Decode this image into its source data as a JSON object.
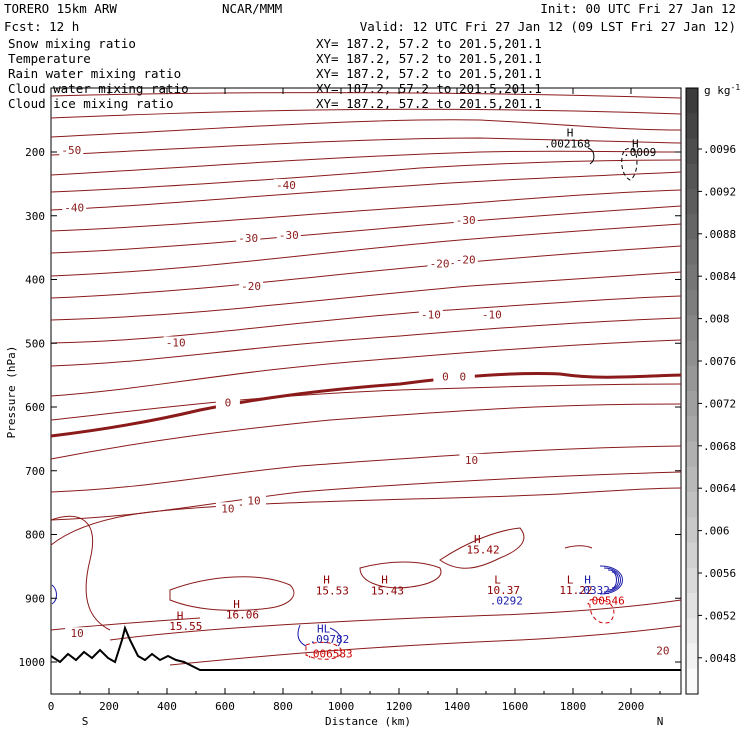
{
  "header": {
    "model": "TORERO  15km ARW",
    "center": "NCAR/MMM",
    "init": "Init: 00 UTC Fri 27 Jan 12",
    "fcst": "Fcst:   12 h",
    "valid": "Valid: 12 UTC Fri 27 Jan 12 (09 LST Fri 27 Jan 12)"
  },
  "legend": [
    {
      "name": "Snow mixing ratio",
      "xy": "XY= 187.2, 57.2 to 201.5,201.1",
      "color": "#000000"
    },
    {
      "name": "Temperature",
      "xy": "XY= 187.2, 57.2 to 201.5,201.1",
      "color": "#cc0000"
    },
    {
      "name": "Rain water mixing ratio",
      "xy": "XY= 187.2, 57.2 to 201.5,201.1",
      "color": "#cc0000"
    },
    {
      "name": "Cloud water mixing ratio",
      "xy": "XY= 187.2, 57.2 to 201.5,201.1",
      "color": "#1a1aaa"
    },
    {
      "name": "Cloud ice mixing ratio",
      "xy": "XY= 187.2, 57.2 to 201.5,201.1",
      "color": "#000000"
    }
  ],
  "chart_data": {
    "type": "contour-cross-section",
    "xlabel": "Distance (km)",
    "ylabel": "Pressure (hPa)",
    "xlim": [
      0,
      2170
    ],
    "ylim": [
      1040,
      100
    ],
    "x_ticks": [
      "0",
      "200",
      "400",
      "600",
      "800",
      "1000",
      "1200",
      "1400",
      "1600",
      "1800",
      "2000"
    ],
    "y_ticks": [
      "200",
      "300",
      "400",
      "500",
      "600",
      "700",
      "800",
      "900",
      "1000"
    ],
    "endpoints": {
      "left": "S",
      "right": "N"
    },
    "colorbar": {
      "unit": "g kg",
      "unit_exp": "-1",
      "labels": [
        ".0096",
        ".0092",
        ".0088",
        ".0084",
        ".008",
        ".0076",
        ".0072",
        ".0068",
        ".0064",
        ".006",
        ".0056",
        ".0052",
        ".0048"
      ]
    },
    "temperature_labels": [
      {
        "text": "-50",
        "x": 70,
        "p": 200
      },
      {
        "text": "-40",
        "x": 80,
        "p": 290
      },
      {
        "text": "-40",
        "x": 810,
        "p": 255
      },
      {
        "text": "-30",
        "x": 680,
        "p": 338
      },
      {
        "text": "-30",
        "x": 820,
        "p": 333
      },
      {
        "text": "-30",
        "x": 1430,
        "p": 310
      },
      {
        "text": "-20",
        "x": 690,
        "p": 413
      },
      {
        "text": "-20",
        "x": 1340,
        "p": 378
      },
      {
        "text": "-20",
        "x": 1430,
        "p": 372
      },
      {
        "text": "-10",
        "x": 430,
        "p": 502
      },
      {
        "text": "-10",
        "x": 1310,
        "p": 458
      },
      {
        "text": "-10",
        "x": 1520,
        "p": 458
      },
      {
        "text": "0",
        "x": 610,
        "p": 596
      },
      {
        "text": "0",
        "x": 1360,
        "p": 555
      },
      {
        "text": "0",
        "x": 1420,
        "p": 555
      },
      {
        "text": "10",
        "x": 610,
        "p": 762
      },
      {
        "text": "10",
        "x": 700,
        "p": 750
      },
      {
        "text": "10",
        "x": 1450,
        "p": 686
      },
      {
        "text": "10",
        "x": 90,
        "p": 958
      },
      {
        "text": "20",
        "x": 2110,
        "p": 985
      }
    ],
    "extrema_labels": [
      {
        "text": "H",
        "x": 1790,
        "p": 176,
        "color": "#000000"
      },
      {
        "text": ".002168",
        "x": 1780,
        "p": 193,
        "color": "#000000"
      },
      {
        "text": "H",
        "x": 2015,
        "p": 193,
        "color": "#000000"
      },
      {
        "text": ".0009",
        "x": 2030,
        "p": 206,
        "color": "#000000"
      },
      {
        "text": "H",
        "x": 1470,
        "p": 813,
        "color": "#8b0000"
      },
      {
        "text": "15.42",
        "x": 1490,
        "p": 830,
        "color": "#8b0000"
      },
      {
        "text": "H",
        "x": 950,
        "p": 877,
        "color": "#8b0000"
      },
      {
        "text": "15.53",
        "x": 970,
        "p": 894,
        "color": "#8b0000"
      },
      {
        "text": "H",
        "x": 1150,
        "p": 877,
        "color": "#8b0000"
      },
      {
        "text": "15.43",
        "x": 1160,
        "p": 894,
        "color": "#8b0000"
      },
      {
        "text": "H",
        "x": 640,
        "p": 915,
        "color": "#8b0000"
      },
      {
        "text": "16.06",
        "x": 660,
        "p": 932,
        "color": "#8b0000"
      },
      {
        "text": "H",
        "x": 445,
        "p": 933,
        "color": "#8b0000"
      },
      {
        "text": "15.55",
        "x": 465,
        "p": 950,
        "color": "#8b0000"
      },
      {
        "text": "L",
        "x": 1540,
        "p": 877,
        "color": "#8b0000"
      },
      {
        "text": "10.37",
        "x": 1560,
        "p": 893,
        "color": "#8b0000"
      },
      {
        "text": ".0292",
        "x": 1570,
        "p": 910,
        "color": "#1a1aaa"
      },
      {
        "text": "L",
        "x": 1790,
        "p": 877,
        "color": "#8b0000"
      },
      {
        "text": "H",
        "x": 1850,
        "p": 877,
        "color": "#1a1aaa"
      },
      {
        "text": "11.22",
        "x": 1810,
        "p": 893,
        "color": "#8b0000"
      },
      {
        "text": ".0332",
        "x": 1870,
        "p": 893,
        "color": "#1a1aaa"
      },
      {
        "text": ".00546",
        "x": 1910,
        "p": 910,
        "color": "#cc0000"
      },
      {
        "text": "HL",
        "x": 940,
        "p": 954,
        "color": "#1a1aaa"
      },
      {
        "text": ".09782",
        "x": 960,
        "p": 970,
        "color": "#1a1aaa"
      },
      {
        "text": ".006583",
        "x": 960,
        "p": 993,
        "color": "#cc0000"
      }
    ]
  }
}
